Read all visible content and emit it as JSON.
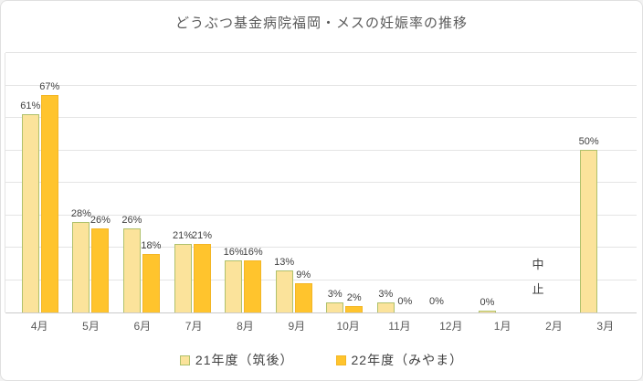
{
  "title": "どうぶつ基金病院福岡・メスの妊娠率の推移",
  "chart_data": {
    "type": "bar",
    "title": "どうぶつ基金病院福岡・メスの妊娠率の推移",
    "categories": [
      "4月",
      "5月",
      "6月",
      "7月",
      "8月",
      "9月",
      "10月",
      "11月",
      "12月",
      "1月",
      "2月",
      "3月"
    ],
    "series": [
      {
        "name": "21年度（筑後）",
        "fill": "#FBE39B",
        "border": "#AFC16C",
        "values": [
          61,
          28,
          26,
          21,
          16,
          13,
          3,
          3,
          0,
          0.5,
          null,
          50
        ],
        "labels": [
          "61%",
          "28%",
          "26%",
          "21%",
          "16%",
          "13%",
          "3%",
          "3%",
          "0%",
          "0%",
          "中止",
          "50%"
        ]
      },
      {
        "name": "22年度（みやま）",
        "fill": "#FFC42D",
        "border": "#F3B625",
        "values": [
          67,
          26,
          18,
          21,
          16,
          9,
          2,
          0,
          null,
          null,
          null,
          null
        ],
        "labels": [
          "67%",
          "26%",
          "18%",
          "21%",
          "16%",
          "9%",
          "2%",
          "0%",
          "",
          "",
          "",
          ""
        ]
      }
    ],
    "ylim": [
      0,
      80
    ],
    "gridlines": {
      "visible": true,
      "interval": 10
    },
    "yaxis_labels_visible": false,
    "legend_position": "bottom",
    "annotation": {
      "text": "中止",
      "category": "2月",
      "series": "21年度（筑後）",
      "orientation": "vertical"
    }
  },
  "legend": {
    "items": [
      {
        "label": "21年度（筑後）",
        "color": "#FBE39B",
        "border": "#AFC16C"
      },
      {
        "label": "22年度（みやま）",
        "color": "#FFC42D",
        "border": "#F3B625"
      }
    ]
  },
  "colors": {
    "title_text": "#595959",
    "data_label_text": "#3F3F3F",
    "axis_label_text": "#595959",
    "gridline": "#E4E4E4",
    "axis_line": "#C9C9C9",
    "background": "#FFFFFF",
    "chart_border": "#E0E0E0"
  }
}
